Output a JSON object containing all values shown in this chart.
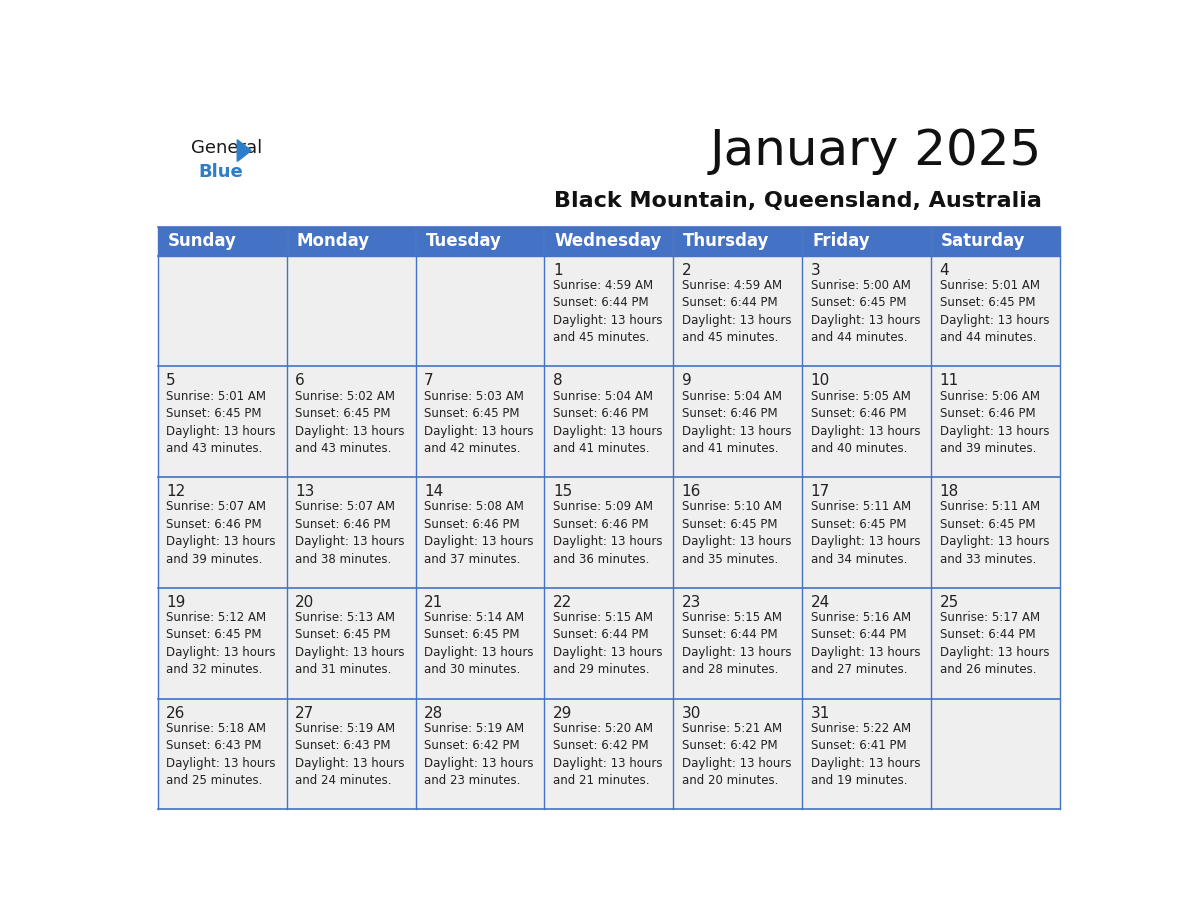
{
  "title": "January 2025",
  "subtitle": "Black Mountain, Queensland, Australia",
  "days_of_week": [
    "Sunday",
    "Monday",
    "Tuesday",
    "Wednesday",
    "Thursday",
    "Friday",
    "Saturday"
  ],
  "header_bg": "#4472C4",
  "header_text": "#FFFFFF",
  "cell_bg": "#EFEFEF",
  "border_color": "#4472C4",
  "day_num_color": "#222222",
  "text_color": "#222222",
  "title_color": "#111111",
  "subtitle_color": "#111111",
  "logo_black_color": "#1a1a1a",
  "logo_blue_color": "#2E7DC9",
  "title_fontsize": 36,
  "subtitle_fontsize": 16,
  "header_fontsize": 12,
  "day_num_fontsize": 11,
  "info_fontsize": 8.5,
  "weeks": [
    [
      {
        "day": null,
        "info": null
      },
      {
        "day": null,
        "info": null
      },
      {
        "day": null,
        "info": null
      },
      {
        "day": 1,
        "info": "Sunrise: 4:59 AM\nSunset: 6:44 PM\nDaylight: 13 hours\nand 45 minutes."
      },
      {
        "day": 2,
        "info": "Sunrise: 4:59 AM\nSunset: 6:44 PM\nDaylight: 13 hours\nand 45 minutes."
      },
      {
        "day": 3,
        "info": "Sunrise: 5:00 AM\nSunset: 6:45 PM\nDaylight: 13 hours\nand 44 minutes."
      },
      {
        "day": 4,
        "info": "Sunrise: 5:01 AM\nSunset: 6:45 PM\nDaylight: 13 hours\nand 44 minutes."
      }
    ],
    [
      {
        "day": 5,
        "info": "Sunrise: 5:01 AM\nSunset: 6:45 PM\nDaylight: 13 hours\nand 43 minutes."
      },
      {
        "day": 6,
        "info": "Sunrise: 5:02 AM\nSunset: 6:45 PM\nDaylight: 13 hours\nand 43 minutes."
      },
      {
        "day": 7,
        "info": "Sunrise: 5:03 AM\nSunset: 6:45 PM\nDaylight: 13 hours\nand 42 minutes."
      },
      {
        "day": 8,
        "info": "Sunrise: 5:04 AM\nSunset: 6:46 PM\nDaylight: 13 hours\nand 41 minutes."
      },
      {
        "day": 9,
        "info": "Sunrise: 5:04 AM\nSunset: 6:46 PM\nDaylight: 13 hours\nand 41 minutes."
      },
      {
        "day": 10,
        "info": "Sunrise: 5:05 AM\nSunset: 6:46 PM\nDaylight: 13 hours\nand 40 minutes."
      },
      {
        "day": 11,
        "info": "Sunrise: 5:06 AM\nSunset: 6:46 PM\nDaylight: 13 hours\nand 39 minutes."
      }
    ],
    [
      {
        "day": 12,
        "info": "Sunrise: 5:07 AM\nSunset: 6:46 PM\nDaylight: 13 hours\nand 39 minutes."
      },
      {
        "day": 13,
        "info": "Sunrise: 5:07 AM\nSunset: 6:46 PM\nDaylight: 13 hours\nand 38 minutes."
      },
      {
        "day": 14,
        "info": "Sunrise: 5:08 AM\nSunset: 6:46 PM\nDaylight: 13 hours\nand 37 minutes."
      },
      {
        "day": 15,
        "info": "Sunrise: 5:09 AM\nSunset: 6:46 PM\nDaylight: 13 hours\nand 36 minutes."
      },
      {
        "day": 16,
        "info": "Sunrise: 5:10 AM\nSunset: 6:45 PM\nDaylight: 13 hours\nand 35 minutes."
      },
      {
        "day": 17,
        "info": "Sunrise: 5:11 AM\nSunset: 6:45 PM\nDaylight: 13 hours\nand 34 minutes."
      },
      {
        "day": 18,
        "info": "Sunrise: 5:11 AM\nSunset: 6:45 PM\nDaylight: 13 hours\nand 33 minutes."
      }
    ],
    [
      {
        "day": 19,
        "info": "Sunrise: 5:12 AM\nSunset: 6:45 PM\nDaylight: 13 hours\nand 32 minutes."
      },
      {
        "day": 20,
        "info": "Sunrise: 5:13 AM\nSunset: 6:45 PM\nDaylight: 13 hours\nand 31 minutes."
      },
      {
        "day": 21,
        "info": "Sunrise: 5:14 AM\nSunset: 6:45 PM\nDaylight: 13 hours\nand 30 minutes."
      },
      {
        "day": 22,
        "info": "Sunrise: 5:15 AM\nSunset: 6:44 PM\nDaylight: 13 hours\nand 29 minutes."
      },
      {
        "day": 23,
        "info": "Sunrise: 5:15 AM\nSunset: 6:44 PM\nDaylight: 13 hours\nand 28 minutes."
      },
      {
        "day": 24,
        "info": "Sunrise: 5:16 AM\nSunset: 6:44 PM\nDaylight: 13 hours\nand 27 minutes."
      },
      {
        "day": 25,
        "info": "Sunrise: 5:17 AM\nSunset: 6:44 PM\nDaylight: 13 hours\nand 26 minutes."
      }
    ],
    [
      {
        "day": 26,
        "info": "Sunrise: 5:18 AM\nSunset: 6:43 PM\nDaylight: 13 hours\nand 25 minutes."
      },
      {
        "day": 27,
        "info": "Sunrise: 5:19 AM\nSunset: 6:43 PM\nDaylight: 13 hours\nand 24 minutes."
      },
      {
        "day": 28,
        "info": "Sunrise: 5:19 AM\nSunset: 6:42 PM\nDaylight: 13 hours\nand 23 minutes."
      },
      {
        "day": 29,
        "info": "Sunrise: 5:20 AM\nSunset: 6:42 PM\nDaylight: 13 hours\nand 21 minutes."
      },
      {
        "day": 30,
        "info": "Sunrise: 5:21 AM\nSunset: 6:42 PM\nDaylight: 13 hours\nand 20 minutes."
      },
      {
        "day": 31,
        "info": "Sunrise: 5:22 AM\nSunset: 6:41 PM\nDaylight: 13 hours\nand 19 minutes."
      },
      {
        "day": null,
        "info": null
      }
    ]
  ]
}
